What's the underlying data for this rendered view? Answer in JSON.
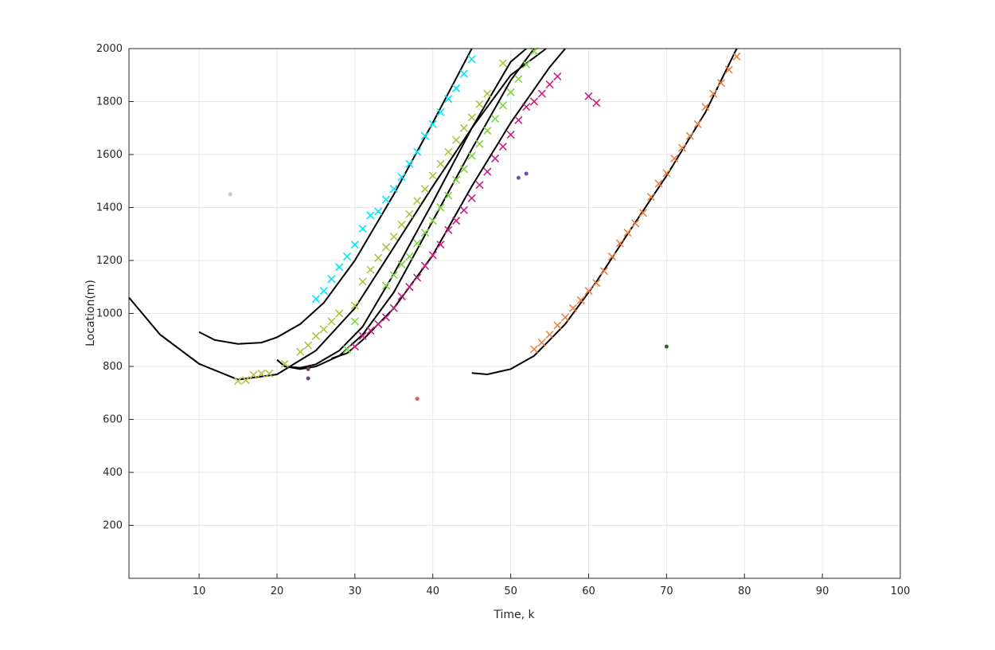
{
  "chart_data": {
    "type": "scatter",
    "title": "",
    "xlabel": "Time, k",
    "ylabel": "Location(m)",
    "xlim": [
      1,
      100
    ],
    "ylim": [
      0,
      2000
    ],
    "xticks": [
      10,
      20,
      30,
      40,
      50,
      60,
      70,
      80,
      90,
      100
    ],
    "yticks": [
      200,
      400,
      600,
      800,
      1000,
      1200,
      1400,
      1600,
      1800,
      2000
    ],
    "grid": true,
    "legend": "none",
    "curves": [
      {
        "color": "#000000",
        "x": [
          1,
          5,
          10,
          15,
          20,
          25,
          30,
          35,
          40,
          45,
          50,
          55,
          60
        ],
        "y": [
          1060,
          920,
          810,
          750,
          770,
          860,
          1020,
          1250,
          1480,
          1700,
          1900,
          2010,
          2100
        ]
      },
      {
        "color": "#000000",
        "x": [
          10,
          12,
          15,
          18,
          20,
          23,
          26,
          30,
          35,
          40,
          45
        ],
        "y": [
          930,
          900,
          885,
          890,
          910,
          960,
          1040,
          1200,
          1450,
          1720,
          2000
        ]
      },
      {
        "color": "#000000",
        "x": [
          20,
          21,
          23,
          25,
          28,
          31,
          35,
          40,
          45,
          50,
          52
        ],
        "y": [
          825,
          800,
          795,
          808,
          860,
          950,
          1150,
          1420,
          1700,
          1950,
          2000
        ]
      },
      {
        "color": "#000000",
        "x": [
          21,
          23,
          25,
          28,
          31,
          35,
          40,
          45,
          50,
          53
        ],
        "y": [
          800,
          790,
          800,
          840,
          920,
          1080,
          1350,
          1620,
          1880,
          2000
        ]
      },
      {
        "color": "#000000",
        "x": [
          27,
          29,
          31,
          35,
          40,
          45,
          50,
          55,
          57
        ],
        "y": [
          830,
          850,
          900,
          1020,
          1220,
          1480,
          1720,
          1930,
          2000
        ]
      },
      {
        "color": "#000000",
        "x": [
          45,
          47,
          50,
          53,
          57,
          61,
          65,
          70,
          75,
          79
        ],
        "y": [
          775,
          770,
          790,
          840,
          960,
          1120,
          1300,
          1520,
          1760,
          2000
        ]
      }
    ],
    "series": [
      {
        "color": "#00e6ff",
        "marker": "x",
        "x": [
          25,
          26,
          27,
          28,
          29,
          30,
          31,
          32,
          33,
          34,
          35,
          36,
          37,
          38,
          39,
          40,
          41,
          42,
          43,
          44,
          45
        ],
        "y": [
          1055,
          1085,
          1130,
          1175,
          1215,
          1260,
          1320,
          1370,
          1385,
          1430,
          1470,
          1515,
          1565,
          1610,
          1670,
          1715,
          1760,
          1810,
          1850,
          1905,
          1960
        ]
      },
      {
        "color": "#b5c040",
        "marker": "x",
        "x": [
          15,
          16,
          17,
          18,
          19,
          21,
          23,
          24,
          25,
          26,
          27,
          28,
          30,
          31,
          32,
          33,
          34,
          35,
          36,
          37,
          38,
          39,
          40,
          41,
          42,
          43,
          44,
          45,
          46,
          47,
          49
        ],
        "y": [
          745,
          748,
          768,
          773,
          773,
          810,
          855,
          880,
          915,
          940,
          970,
          1000,
          1030,
          1120,
          1165,
          1210,
          1250,
          1290,
          1335,
          1375,
          1425,
          1470,
          1520,
          1565,
          1610,
          1655,
          1700,
          1740,
          1790,
          1830,
          1945
        ]
      },
      {
        "color": "#7fd440",
        "marker": "x",
        "x": [
          29,
          30,
          34,
          35,
          36,
          37,
          38,
          39,
          40,
          41,
          42,
          43,
          44,
          45,
          46,
          47,
          48,
          49,
          50,
          51,
          52,
          53
        ],
        "y": [
          865,
          970,
          1105,
          1145,
          1185,
          1215,
          1265,
          1305,
          1350,
          1400,
          1445,
          1505,
          1545,
          1595,
          1640,
          1690,
          1735,
          1785,
          1835,
          1885,
          1940,
          1990
        ]
      },
      {
        "color": "#c8207e",
        "marker": "x",
        "x": [
          30,
          31,
          32,
          33,
          34,
          35,
          36,
          37,
          38,
          39,
          40,
          41,
          42,
          43,
          44,
          45,
          46,
          47,
          48,
          49,
          50,
          51,
          52,
          53,
          54,
          55,
          56,
          60,
          61
        ],
        "y": [
          875,
          915,
          935,
          960,
          985,
          1020,
          1065,
          1100,
          1135,
          1180,
          1220,
          1260,
          1315,
          1350,
          1390,
          1435,
          1485,
          1535,
          1585,
          1630,
          1675,
          1730,
          1780,
          1800,
          1830,
          1865,
          1895,
          1820,
          1795
        ]
      },
      {
        "color": "#f08040",
        "marker": "x",
        "x": [
          53,
          54,
          55,
          56,
          57,
          58,
          59,
          60,
          61,
          62,
          63,
          64,
          65,
          66,
          67,
          68,
          69,
          70,
          71,
          72,
          73,
          74,
          75,
          76,
          77,
          78,
          79
        ],
        "y": [
          865,
          890,
          920,
          955,
          985,
          1020,
          1050,
          1085,
          1115,
          1160,
          1215,
          1265,
          1305,
          1340,
          1380,
          1440,
          1490,
          1530,
          1585,
          1625,
          1670,
          1715,
          1780,
          1830,
          1870,
          1920,
          1970
        ]
      },
      {
        "color": "#c8c8c8",
        "marker": "dot",
        "x": [
          14
        ],
        "y": [
          1450
        ]
      },
      {
        "color": "#7a3a6b",
        "marker": "dot",
        "x": [
          24
        ],
        "y": [
          790
        ]
      },
      {
        "color": "#5a4a8a",
        "marker": "dot",
        "x": [
          24
        ],
        "y": [
          755
        ]
      },
      {
        "color": "#e06050",
        "marker": "dot",
        "x": [
          38
        ],
        "y": [
          678
        ]
      },
      {
        "color": "#8040c8",
        "marker": "dot",
        "x": [
          51,
          52
        ],
        "y": [
          1512,
          1528
        ]
      },
      {
        "color": "#2d6a1a",
        "marker": "dot",
        "x": [
          70
        ],
        "y": [
          875
        ]
      }
    ]
  }
}
